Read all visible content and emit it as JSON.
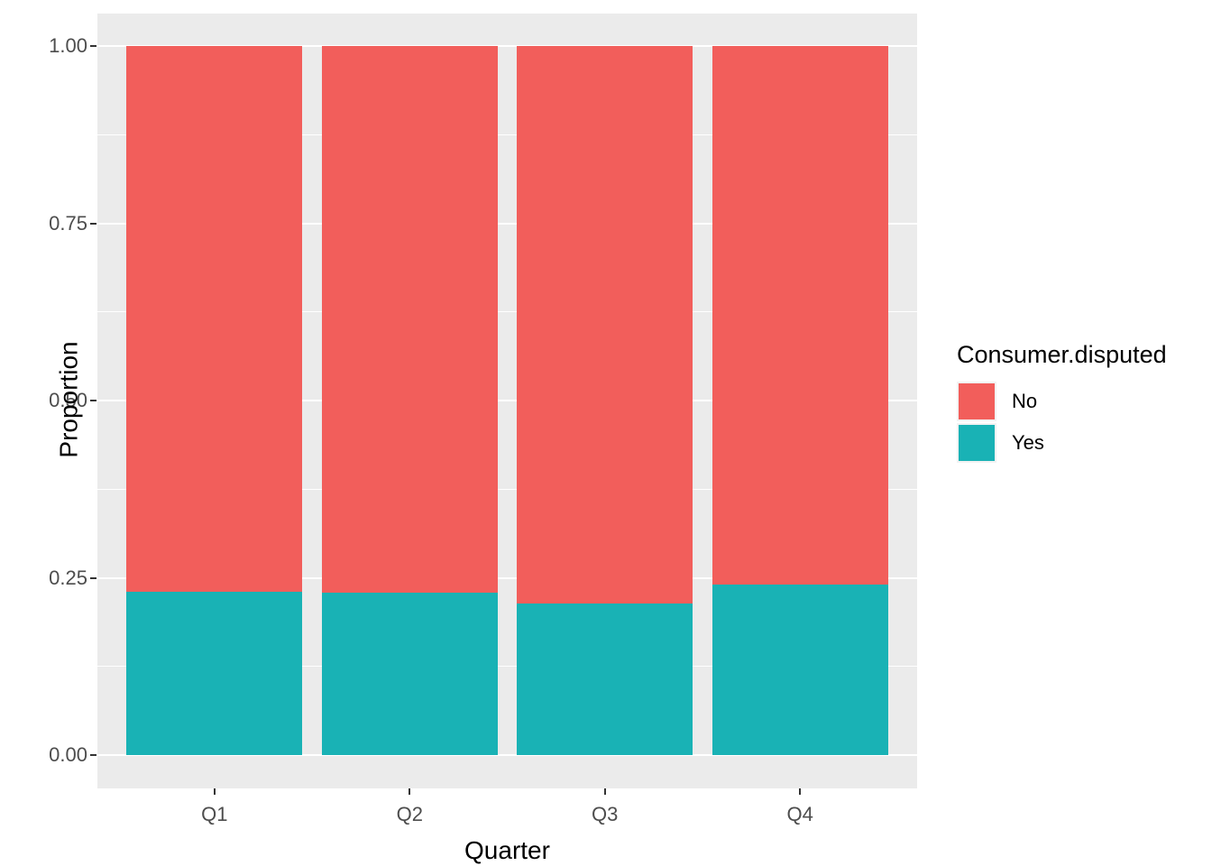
{
  "figure": {
    "background": "#FFFFFF",
    "panel_background": "#EBEBEB",
    "grid_color": "#FFFFFF",
    "tick_color": "#333333",
    "tick_label_color": "#4D4D4D"
  },
  "chart_data": {
    "type": "bar",
    "stacked": true,
    "normalized": true,
    "title": "",
    "xlabel": "Quarter",
    "ylabel": "Proportion",
    "categories": [
      "Q1",
      "Q2",
      "Q3",
      "Q4"
    ],
    "series": [
      {
        "name": "No",
        "color": "#F25E5B",
        "values": [
          0.77,
          0.771,
          0.786,
          0.759
        ]
      },
      {
        "name": "Yes",
        "color": "#19B2B5",
        "values": [
          0.23,
          0.229,
          0.214,
          0.241
        ]
      }
    ],
    "stack_order_bottom_to_top": [
      "Yes",
      "No"
    ],
    "ylim": [
      0,
      1
    ],
    "ytick_values": [
      0,
      0.25,
      0.5,
      0.75,
      1
    ],
    "ytick_labels": [
      "0.00",
      "0.25",
      "0.50",
      "0.75",
      "1.00"
    ],
    "minor_gridlines": [
      0.125,
      0.375,
      0.625,
      0.875
    ],
    "grid": true,
    "legend": {
      "title": "Consumer.disputed",
      "position": "right",
      "entries": [
        {
          "label": "No",
          "color": "#F25E5B"
        },
        {
          "label": "Yes",
          "color": "#19B2B5"
        }
      ]
    }
  }
}
